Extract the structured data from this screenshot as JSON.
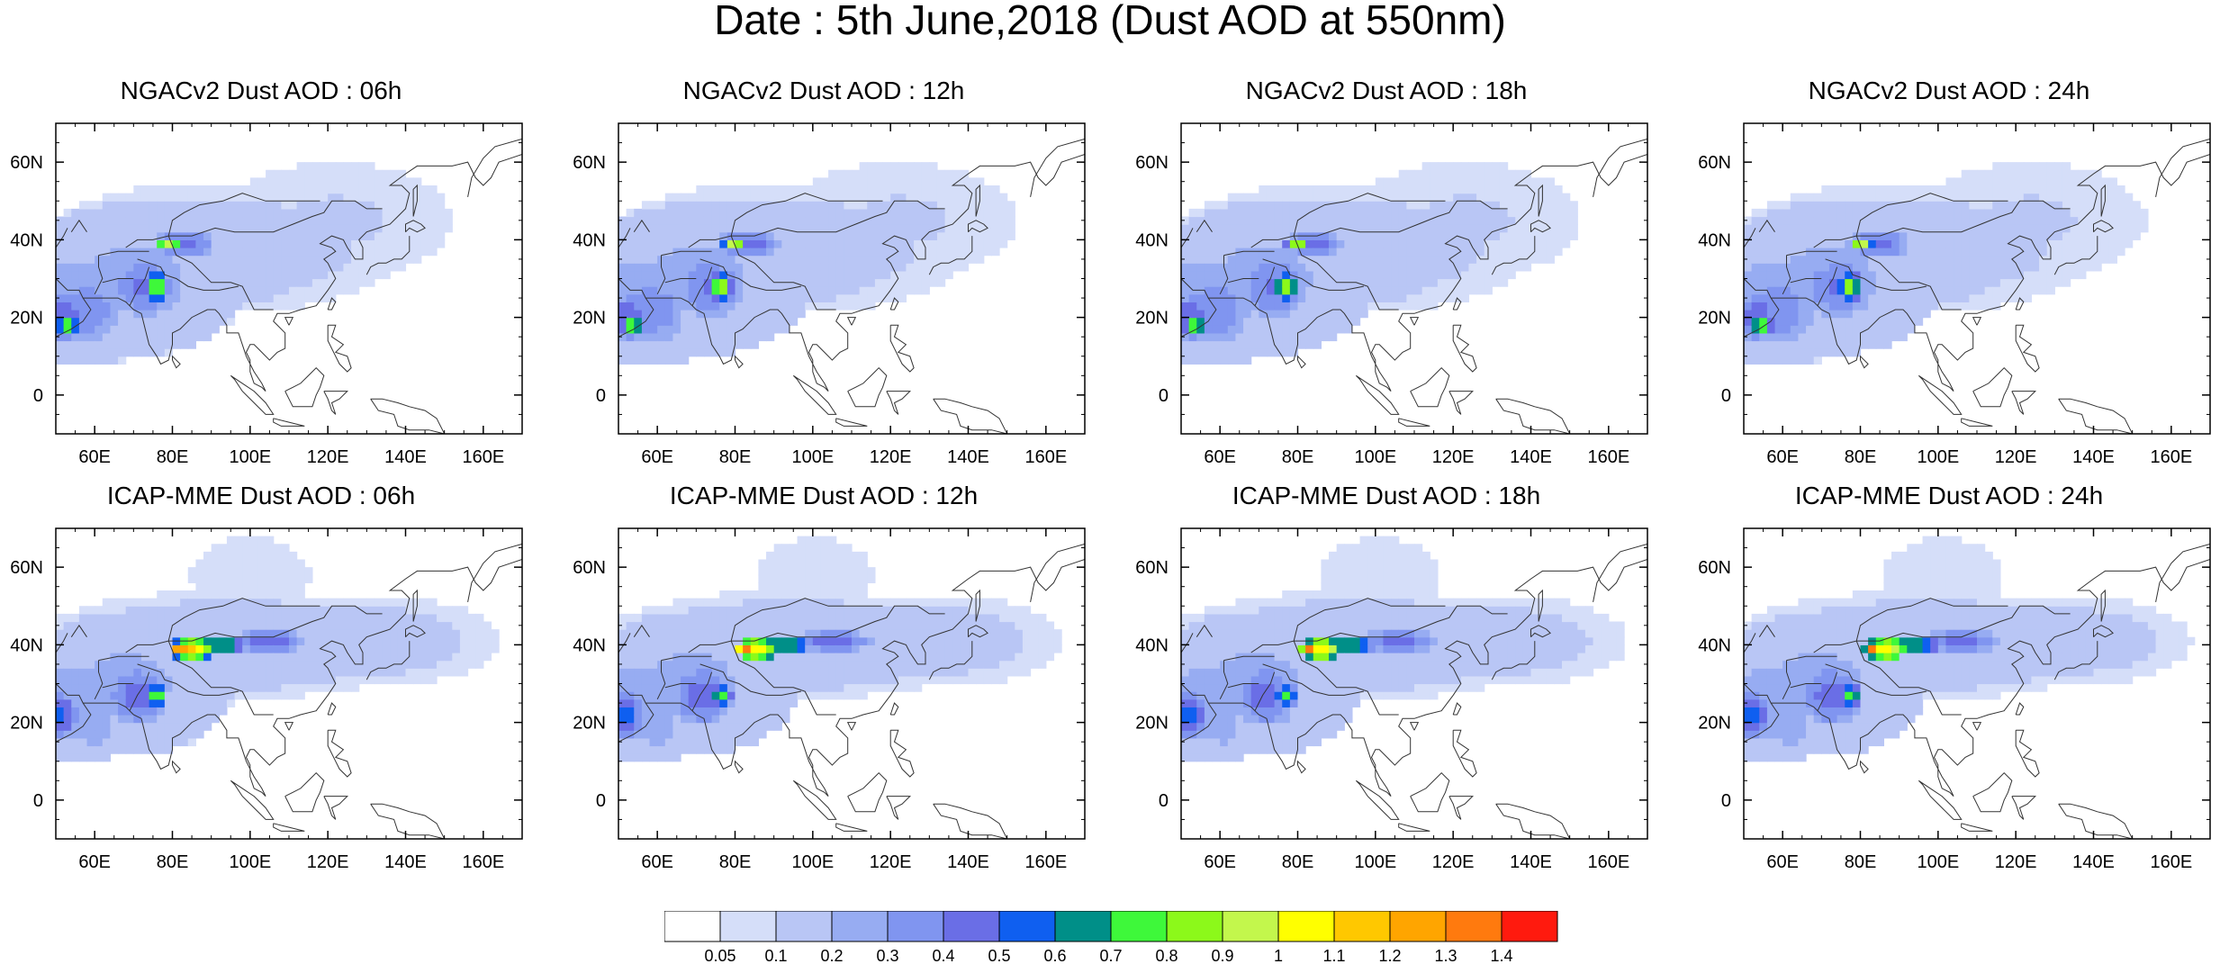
{
  "title": "Date : 5th June,2018 (Dust AOD at 550nm)",
  "map": {
    "lon_range": [
      50,
      170
    ],
    "lat_range": [
      -10,
      70
    ],
    "lon_ticks": [
      {
        "value": 60,
        "label": "60E"
      },
      {
        "value": 80,
        "label": "80E"
      },
      {
        "value": 100,
        "label": "100E"
      },
      {
        "value": 120,
        "label": "120E"
      },
      {
        "value": 140,
        "label": "140E"
      },
      {
        "value": 160,
        "label": "160E"
      }
    ],
    "lat_ticks": [
      {
        "value": 0,
        "label": "0"
      },
      {
        "value": 20,
        "label": "20N"
      },
      {
        "value": 40,
        "label": "40N"
      },
      {
        "value": 60,
        "label": "60N"
      }
    ]
  },
  "panels": [
    {
      "title": "NGACv2 Dust AOD : 06h",
      "model": "NGACv2",
      "hour": "06"
    },
    {
      "title": "NGACv2 Dust AOD : 12h",
      "model": "NGACv2",
      "hour": "12"
    },
    {
      "title": "NGACv2 Dust AOD : 18h",
      "model": "NGACv2",
      "hour": "18"
    },
    {
      "title": "NGACv2 Dust AOD : 24h",
      "model": "NGACv2",
      "hour": "24"
    },
    {
      "title": "ICAP-MME Dust AOD : 06h",
      "model": "ICAP-MME",
      "hour": "06"
    },
    {
      "title": "ICAP-MME Dust AOD : 12h",
      "model": "ICAP-MME",
      "hour": "12"
    },
    {
      "title": "ICAP-MME Dust AOD : 18h",
      "model": "ICAP-MME",
      "hour": "18"
    },
    {
      "title": "ICAP-MME Dust AOD : 24h",
      "model": "ICAP-MME",
      "hour": "24"
    }
  ],
  "colorbar": {
    "colors": [
      "#ffffff",
      "#d5def9",
      "#b9c6f5",
      "#97acf2",
      "#8095f0",
      "#6a6ee6",
      "#0f5ff0",
      "#008f88",
      "#3ef83a",
      "#8cf91a",
      "#c3f74c",
      "#ffff00",
      "#ffc800",
      "#ffa500",
      "#ff7a0e",
      "#ff1a0e"
    ],
    "labels": [
      "0.05",
      "0.1",
      "0.2",
      "0.3",
      "0.4",
      "0.5",
      "0.6",
      "0.7",
      "0.8",
      "0.9",
      "1",
      "1.1",
      "1.2",
      "1.3",
      "1.4"
    ]
  }
}
